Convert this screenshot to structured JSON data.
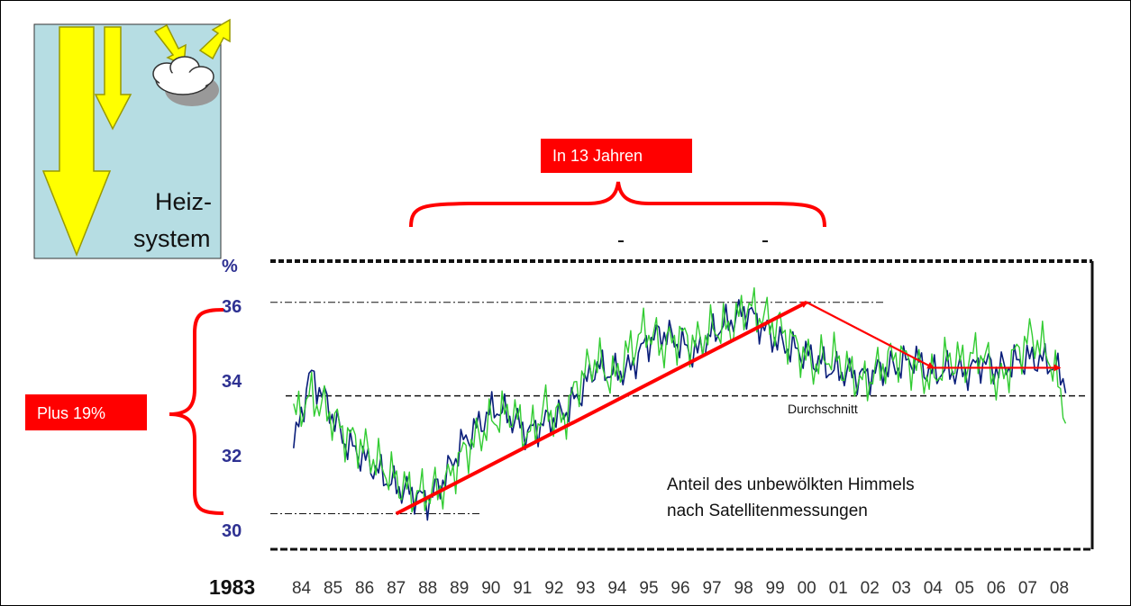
{
  "chart_data": {
    "type": "line",
    "ylabel": "%",
    "ylim": [
      29.5,
      37.2
    ],
    "yticks": [
      "30",
      "32",
      "34",
      "36"
    ],
    "x_first_label": "1983",
    "x_tick_labels": [
      "84",
      "85",
      "86",
      "87",
      "88",
      "89",
      "90",
      "91",
      "92",
      "93",
      "94",
      "95",
      "96",
      "97",
      "98",
      "99",
      "00",
      "01",
      "02",
      "03",
      "04",
      "05",
      "06",
      "07",
      "08"
    ],
    "average_label": "Durchschnitt",
    "average_value": 33.6,
    "max_line": 36.1,
    "min_line": 30.45,
    "series": [
      {
        "color": "#0a1e7a",
        "values": [
          32.2,
          34.2,
          33.4,
          32.4,
          32.0,
          31.6,
          31.2,
          31.0,
          30.8,
          31.4,
          32.3,
          32.8,
          33.3,
          33.0,
          32.6,
          32.9,
          33.1,
          33.6,
          34.4,
          34.2,
          34.3,
          35.0,
          35.3,
          35.0,
          34.7,
          35.3,
          35.6,
          35.9,
          35.4,
          35.0,
          34.8,
          34.6,
          34.3,
          34.2,
          34.1,
          34.3,
          34.4,
          34.6,
          34.2,
          34.3,
          34.2,
          34.5,
          34.3,
          34.5,
          34.6,
          34.5,
          34.0
        ]
      },
      {
        "color": "#33cc33",
        "values": [
          33.0,
          33.6,
          33.2,
          32.6,
          32.3,
          31.8,
          31.4,
          31.0,
          31.0,
          31.2,
          32.0,
          32.5,
          33.0,
          33.2,
          32.5,
          33.3,
          32.9,
          34.0,
          34.6,
          34.0,
          34.8,
          35.4,
          34.9,
          35.2,
          35.0,
          35.4,
          35.4,
          36.0,
          35.7,
          35.4,
          34.9,
          34.4,
          34.7,
          34.3,
          33.9,
          34.4,
          34.7,
          34.4,
          34.0,
          34.6,
          34.5,
          34.8,
          33.9,
          34.7,
          35.2,
          34.7,
          33.2
        ]
      }
    ],
    "trend_segments": [
      {
        "from": [
          1987.0,
          30.45
        ],
        "to": [
          2000.0,
          36.1
        ]
      },
      {
        "from": [
          2000.0,
          36.1
        ],
        "to": [
          2004.0,
          34.35
        ]
      },
      {
        "from": [
          2004.0,
          34.35
        ],
        "to": [
          2008.0,
          34.35
        ]
      }
    ]
  },
  "annotations": {
    "span_box": "In 13 Jahren",
    "plus_box": "Plus 19%",
    "caption_line1": "Anteil des unbewölkten Himmels",
    "caption_line2": "nach Satellitenmessungen"
  },
  "inset": {
    "line1": "Heiz-",
    "line2": "system"
  },
  "colors": {
    "accent": "#ff0000",
    "axis_text": "#2e3192",
    "inset_bg": "#b6dde3",
    "arrow_fill": "#ffff00"
  }
}
